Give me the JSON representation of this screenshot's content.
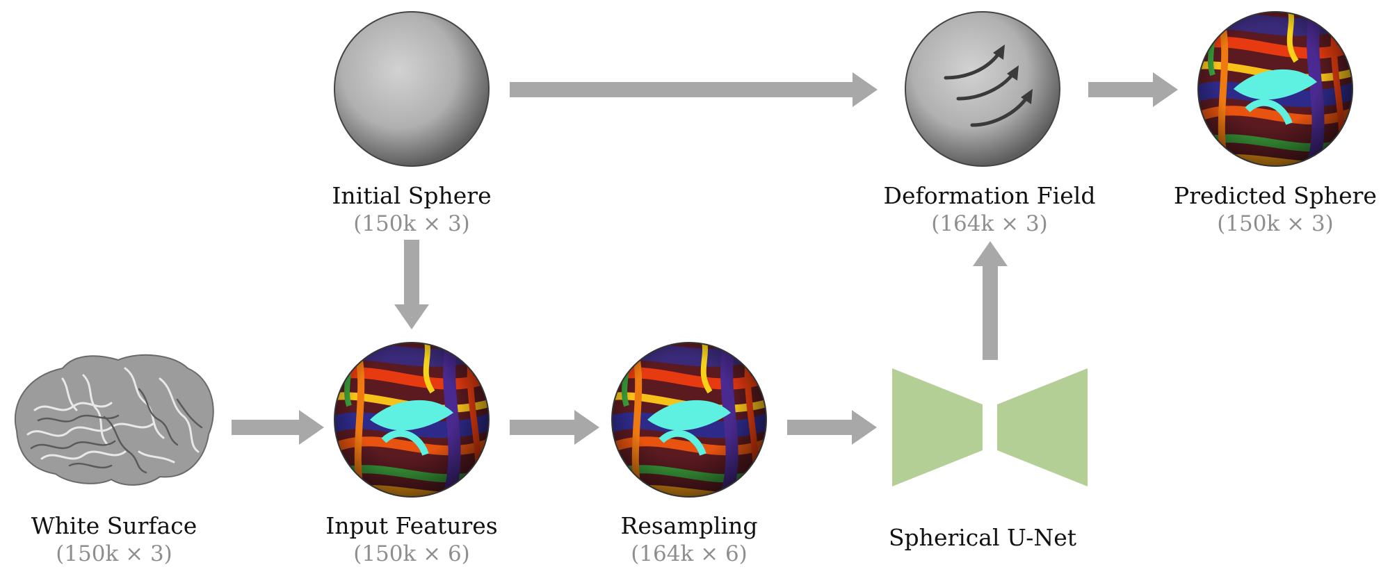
{
  "nodes": {
    "initial_sphere": {
      "label": "Initial Sphere",
      "dims": "(150k × 3)"
    },
    "deformation_field": {
      "label": "Deformation Field",
      "dims": "(164k × 3)"
    },
    "predicted_sphere": {
      "label": "Predicted Sphere",
      "dims": "(150k × 3)"
    },
    "white_surface": {
      "label": "White Surface",
      "dims": "(150k × 3)"
    },
    "input_features": {
      "label": "Input Features",
      "dims": "(150k × 6)"
    },
    "resampling": {
      "label": "Resampling",
      "dims": "(164k × 6)"
    },
    "spherical_unet": {
      "label": "Spherical U-Net"
    }
  },
  "colors": {
    "arrow": "#a8a8a8",
    "unet": "#b3cf95",
    "sphere_gray": "#9a9a9a",
    "brain": "#9c9c9c",
    "label": "#111111",
    "dims": "#8e8e8e"
  }
}
